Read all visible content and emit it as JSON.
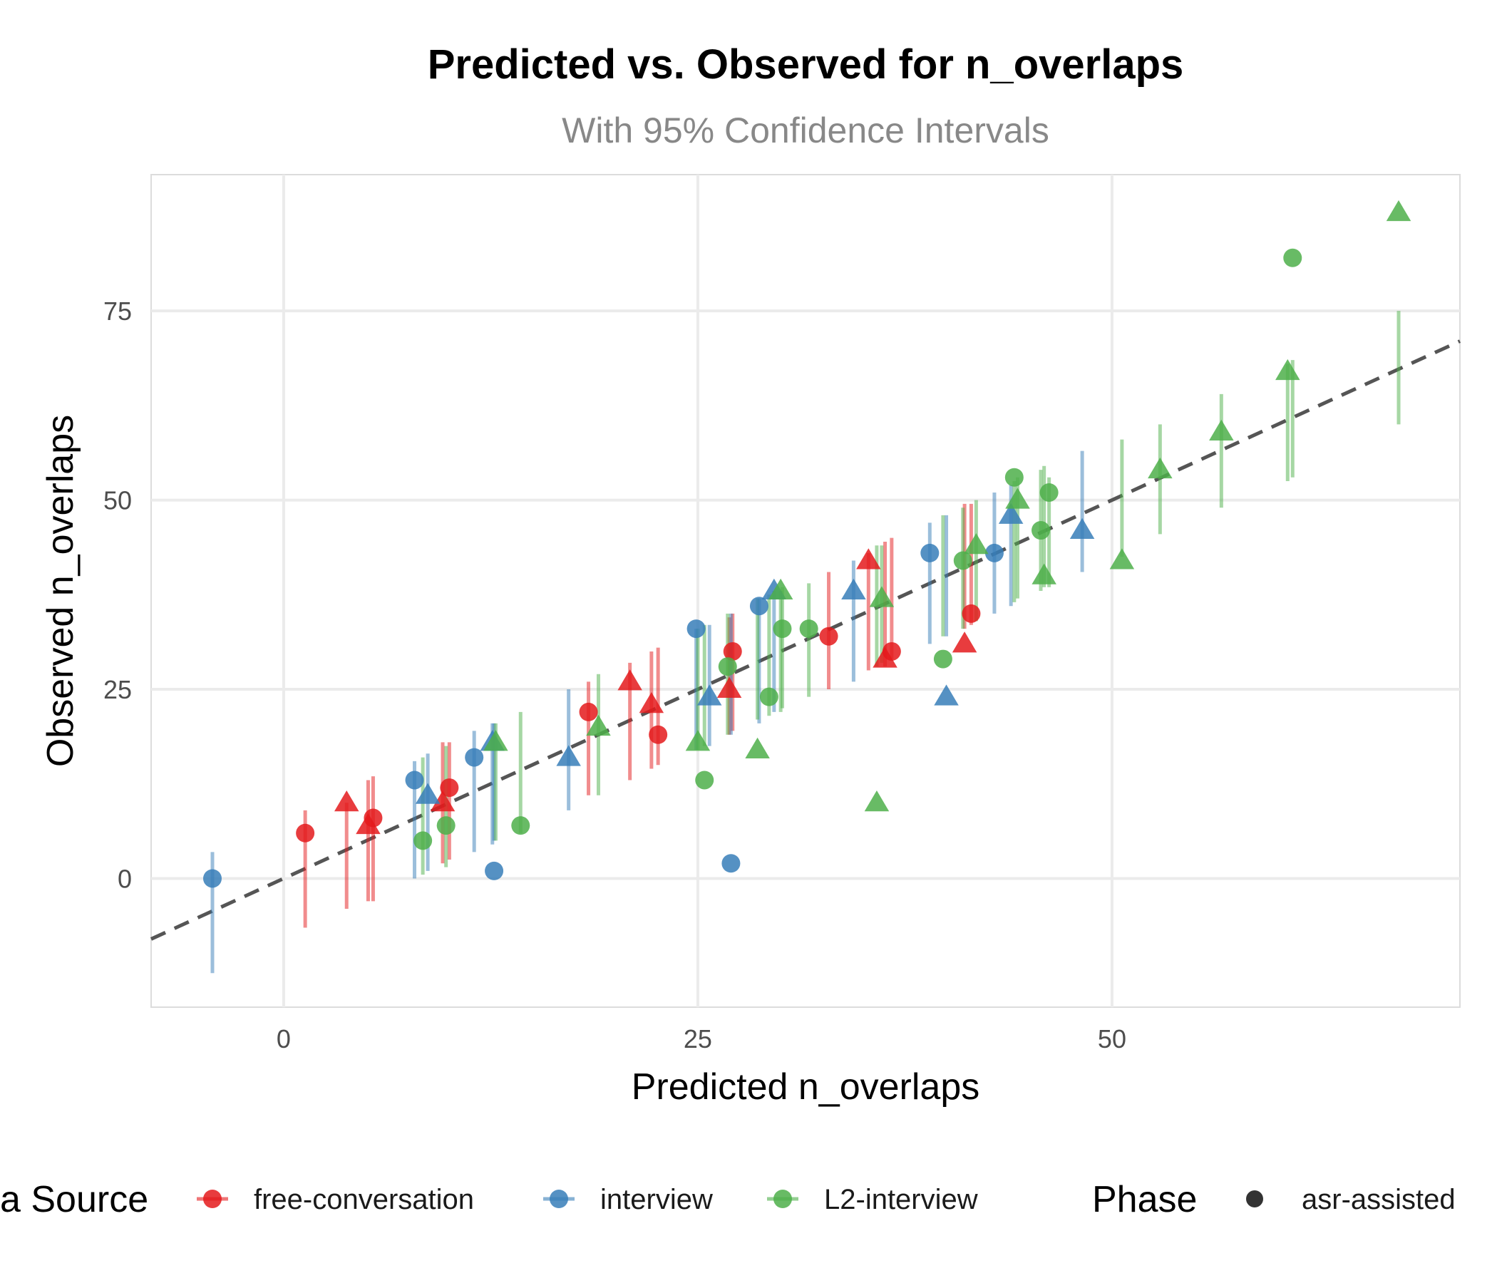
{
  "chart_data": {
    "type": "scatter",
    "title": "Predicted vs. Observed for n_overlaps",
    "subtitle": "With 95% Confidence Intervals",
    "xlabel": "Predicted n_overlaps",
    "ylabel": "Observed n_overlaps",
    "xlim": [
      -8,
      71
    ],
    "ylim": [
      -17,
      93
    ],
    "x_ticks": [
      "0",
      "25",
      "50"
    ],
    "y_ticks": [
      "0",
      "25",
      "50",
      "75"
    ],
    "x_tick_values": [
      0,
      25,
      50
    ],
    "y_tick_values": [
      0,
      25,
      50,
      75
    ],
    "grid": true,
    "reference_line": "y = x (dashed)",
    "legend": {
      "position": "bottom",
      "color_title": "Data Source",
      "color_title_visible": "a Source",
      "shape_title": "Phase",
      "shape_entries": [
        "asr-assisted"
      ],
      "entries": [
        {
          "name": "free-conversation",
          "color": "#e41a1c"
        },
        {
          "name": "interview",
          "color": "#377eb8"
        },
        {
          "name": "L2-interview",
          "color": "#4daf4a"
        }
      ]
    },
    "series": [
      {
        "name": "free-conversation",
        "color": "#e41a1c",
        "points": [
          {
            "x": 1.3,
            "y": 6,
            "lo": -6.5,
            "hi": 9,
            "shape": "circle"
          },
          {
            "x": 3.8,
            "y": 10,
            "lo": -4,
            "hi": 10,
            "shape": "triangle"
          },
          {
            "x": 5.1,
            "y": 7,
            "lo": -3,
            "hi": 13,
            "shape": "triangle"
          },
          {
            "x": 5.4,
            "y": 8,
            "lo": -3,
            "hi": 13.5,
            "shape": "circle"
          },
          {
            "x": 9.6,
            "y": 10,
            "lo": 2,
            "hi": 18,
            "shape": "triangle"
          },
          {
            "x": 10.0,
            "y": 12,
            "lo": 2.5,
            "hi": 18,
            "shape": "circle"
          },
          {
            "x": 18.4,
            "y": 22,
            "lo": 11,
            "hi": 26,
            "shape": "circle"
          },
          {
            "x": 20.9,
            "y": 26,
            "lo": 13,
            "hi": 28.5,
            "shape": "triangle"
          },
          {
            "x": 22.2,
            "y": 23,
            "lo": 14.5,
            "hi": 30,
            "shape": "triangle"
          },
          {
            "x": 22.6,
            "y": 19,
            "lo": 15,
            "hi": 30.5,
            "shape": "circle"
          },
          {
            "x": 26.9,
            "y": 25,
            "lo": 19,
            "hi": 34.5,
            "shape": "triangle"
          },
          {
            "x": 27.1,
            "y": 30,
            "lo": 19.5,
            "hi": 35,
            "shape": "circle"
          },
          {
            "x": 32.9,
            "y": 32,
            "lo": 25,
            "hi": 40.5,
            "shape": "circle"
          },
          {
            "x": 35.3,
            "y": 42,
            "lo": 27.5,
            "hi": 43,
            "shape": "triangle"
          },
          {
            "x": 36.3,
            "y": 29,
            "lo": 28,
            "hi": 44.5,
            "shape": "triangle"
          },
          {
            "x": 36.7,
            "y": 30,
            "lo": 29,
            "hi": 45,
            "shape": "circle"
          },
          {
            "x": 41.1,
            "y": 31,
            "lo": 33,
            "hi": 49.5,
            "shape": "triangle"
          },
          {
            "x": 41.5,
            "y": 35,
            "lo": 33.5,
            "hi": 49.5,
            "shape": "circle"
          }
        ]
      },
      {
        "name": "interview",
        "color": "#377eb8",
        "points": [
          {
            "x": -4.3,
            "y": 0,
            "lo": -12.5,
            "hi": 3.5,
            "shape": "circle"
          },
          {
            "x": 7.9,
            "y": 13,
            "lo": 0,
            "hi": 15.5,
            "shape": "circle"
          },
          {
            "x": 8.7,
            "y": 11,
            "lo": 1,
            "hi": 16.5,
            "shape": "triangle"
          },
          {
            "x": 11.5,
            "y": 16,
            "lo": 3.5,
            "hi": 19.5,
            "shape": "circle"
          },
          {
            "x": 12.6,
            "y": 18,
            "lo": 4.5,
            "hi": 20.5,
            "shape": "triangle"
          },
          {
            "x": 12.7,
            "y": 1,
            "lo": 5,
            "hi": 20.5,
            "shape": "circle"
          },
          {
            "x": 17.2,
            "y": 16,
            "lo": 9,
            "hi": 25,
            "shape": "triangle"
          },
          {
            "x": 24.9,
            "y": 33,
            "lo": 17,
            "hi": 33,
            "shape": "circle"
          },
          {
            "x": 25.7,
            "y": 24,
            "lo": 17.5,
            "hi": 33.5,
            "shape": "triangle"
          },
          {
            "x": 27.0,
            "y": 2,
            "lo": 19,
            "hi": 35,
            "shape": "circle"
          },
          {
            "x": 28.7,
            "y": 36,
            "lo": 20.5,
            "hi": 37,
            "shape": "circle"
          },
          {
            "x": 29.6,
            "y": 38,
            "lo": 22,
            "hi": 38,
            "shape": "triangle"
          },
          {
            "x": 34.4,
            "y": 38,
            "lo": 26,
            "hi": 42,
            "shape": "triangle"
          },
          {
            "x": 39.0,
            "y": 43,
            "lo": 31,
            "hi": 47,
            "shape": "circle"
          },
          {
            "x": 40.0,
            "y": 24,
            "lo": 32,
            "hi": 48,
            "shape": "triangle"
          },
          {
            "x": 42.9,
            "y": 43,
            "lo": 35,
            "hi": 51,
            "shape": "circle"
          },
          {
            "x": 43.9,
            "y": 48,
            "lo": 36,
            "hi": 52,
            "shape": "triangle"
          },
          {
            "x": 48.2,
            "y": 46,
            "lo": 40.5,
            "hi": 56.5,
            "shape": "triangle"
          }
        ]
      },
      {
        "name": "L2-interview",
        "color": "#4daf4a",
        "points": [
          {
            "x": 8.4,
            "y": 5,
            "lo": 0.5,
            "hi": 16,
            "shape": "circle"
          },
          {
            "x": 9.8,
            "y": 7,
            "lo": 1.5,
            "hi": 17.5,
            "shape": "circle"
          },
          {
            "x": 12.8,
            "y": 18,
            "lo": 5,
            "hi": 20.5,
            "shape": "triangle"
          },
          {
            "x": 14.3,
            "y": 7,
            "lo": 6,
            "hi": 22,
            "shape": "circle"
          },
          {
            "x": 19.0,
            "y": 20,
            "lo": 11,
            "hi": 27,
            "shape": "triangle"
          },
          {
            "x": 25.0,
            "y": 18,
            "lo": 17,
            "hi": 33,
            "shape": "triangle"
          },
          {
            "x": 25.4,
            "y": 13,
            "lo": 17.5,
            "hi": 33.5,
            "shape": "circle"
          },
          {
            "x": 26.8,
            "y": 28,
            "lo": 19,
            "hi": 35,
            "shape": "circle"
          },
          {
            "x": 28.6,
            "y": 17,
            "lo": 21,
            "hi": 37,
            "shape": "triangle"
          },
          {
            "x": 29.3,
            "y": 24,
            "lo": 21.5,
            "hi": 37.5,
            "shape": "circle"
          },
          {
            "x": 30.0,
            "y": 38,
            "lo": 22,
            "hi": 38,
            "shape": "triangle"
          },
          {
            "x": 30.1,
            "y": 33,
            "lo": 22.5,
            "hi": 38.5,
            "shape": "circle"
          },
          {
            "x": 31.7,
            "y": 33,
            "lo": 24,
            "hi": 39,
            "shape": "circle"
          },
          {
            "x": 35.8,
            "y": 10,
            "lo": 28,
            "hi": 44,
            "shape": "triangle"
          },
          {
            "x": 36.1,
            "y": 37,
            "lo": 28.5,
            "hi": 44,
            "shape": "triangle"
          },
          {
            "x": 39.8,
            "y": 29,
            "lo": 32,
            "hi": 48,
            "shape": "circle"
          },
          {
            "x": 41.0,
            "y": 42,
            "lo": 33,
            "hi": 49,
            "shape": "circle"
          },
          {
            "x": 41.8,
            "y": 44,
            "lo": 34,
            "hi": 50,
            "shape": "triangle"
          },
          {
            "x": 44.1,
            "y": 53,
            "lo": 36.5,
            "hi": 52.5,
            "shape": "circle"
          },
          {
            "x": 44.3,
            "y": 50,
            "lo": 37,
            "hi": 53,
            "shape": "triangle"
          },
          {
            "x": 45.7,
            "y": 46,
            "lo": 38,
            "hi": 54,
            "shape": "circle"
          },
          {
            "x": 45.9,
            "y": 40,
            "lo": 38.5,
            "hi": 54.5,
            "shape": "triangle"
          },
          {
            "x": 46.2,
            "y": 51,
            "lo": 38.5,
            "hi": 53,
            "shape": "circle"
          },
          {
            "x": 50.6,
            "y": 42,
            "lo": 42.5,
            "hi": 58,
            "shape": "triangle"
          },
          {
            "x": 52.9,
            "y": 54,
            "lo": 45.5,
            "hi": 60,
            "shape": "triangle"
          },
          {
            "x": 56.6,
            "y": 59,
            "lo": 49,
            "hi": 64,
            "shape": "triangle"
          },
          {
            "x": 60.6,
            "y": 67,
            "lo": 52.5,
            "hi": 68,
            "shape": "triangle"
          },
          {
            "x": 60.9,
            "y": 82,
            "lo": 53,
            "hi": 68.5,
            "shape": "circle"
          },
          {
            "x": 67.3,
            "y": 88,
            "lo": 60,
            "hi": 75,
            "shape": "triangle"
          }
        ]
      }
    ]
  }
}
